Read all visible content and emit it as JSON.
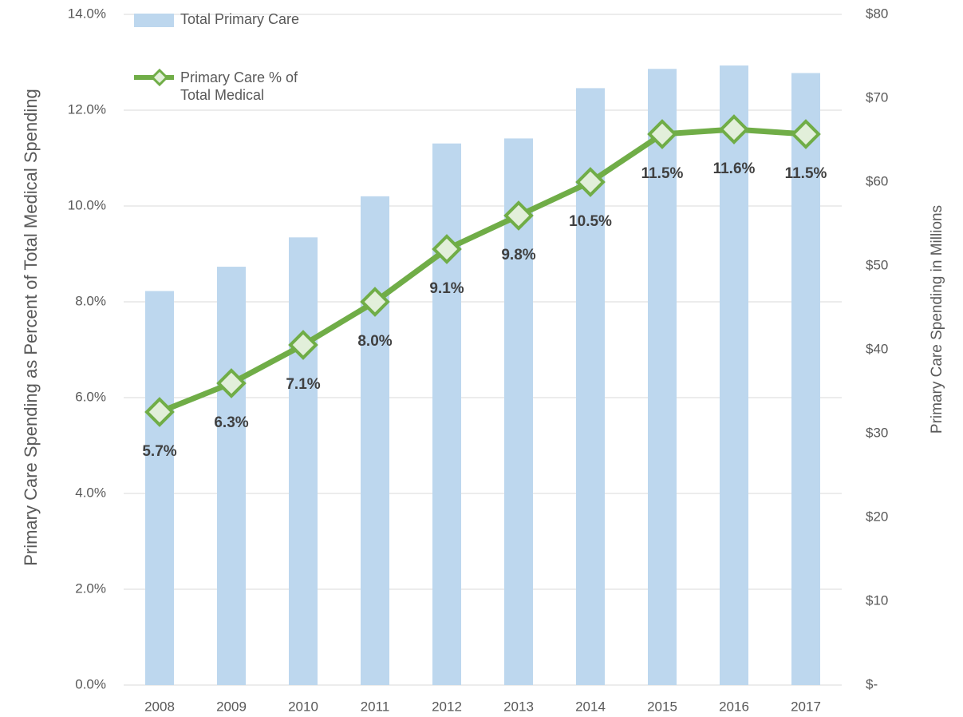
{
  "chart_data": {
    "type": "bar_line",
    "y_label": "Primary Care Spending as Percent of Total Medical Spending",
    "y2_label": "Primary Care Spending in Millions",
    "categories": [
      "2008",
      "2009",
      "2010",
      "2011",
      "2012",
      "2013",
      "2014",
      "2015",
      "2016",
      "2017"
    ],
    "series": [
      {
        "name": "Total Primary Care",
        "type": "bar",
        "axis": "y2",
        "color": "#bdd7ee",
        "values": [
          47.0,
          49.9,
          53.4,
          58.3,
          64.6,
          65.2,
          71.2,
          73.5,
          73.9,
          73.0
        ]
      },
      {
        "name": "Primary Care % of Total Medical",
        "type": "line",
        "color": "#70ad47",
        "values": [
          5.7,
          6.3,
          7.1,
          8.0,
          9.1,
          9.8,
          10.5,
          11.5,
          11.6,
          11.5
        ],
        "value_labels": [
          "5.7%",
          "6.3%",
          "7.1%",
          "8.0%",
          "9.1%",
          "9.8%",
          "10.5%",
          "11.5%",
          "11.6%",
          "11.5%"
        ]
      }
    ],
    "ylim": [
      0,
      14
    ],
    "yticks": [
      {
        "value": 0,
        "label": "0.0%"
      },
      {
        "value": 2,
        "label": "2.0%"
      },
      {
        "value": 4,
        "label": "4.0%"
      },
      {
        "value": 6,
        "label": "6.0%"
      },
      {
        "value": 8,
        "label": "8.0%"
      },
      {
        "value": 10,
        "label": "10.0%"
      },
      {
        "value": 12,
        "label": "12.0%"
      },
      {
        "value": 14,
        "label": "14.0%"
      }
    ],
    "y2lim": [
      0,
      80
    ],
    "y2ticks": [
      {
        "value": 0,
        "label": "$-"
      },
      {
        "value": 10,
        "label": "$10"
      },
      {
        "value": 20,
        "label": "$20"
      },
      {
        "value": 30,
        "label": "$30"
      },
      {
        "value": 40,
        "label": "$40"
      },
      {
        "value": 50,
        "label": "$50"
      },
      {
        "value": 60,
        "label": "$60"
      },
      {
        "value": 70,
        "label": "$70"
      },
      {
        "value": 80,
        "label": "$80"
      }
    ],
    "grid": true
  }
}
